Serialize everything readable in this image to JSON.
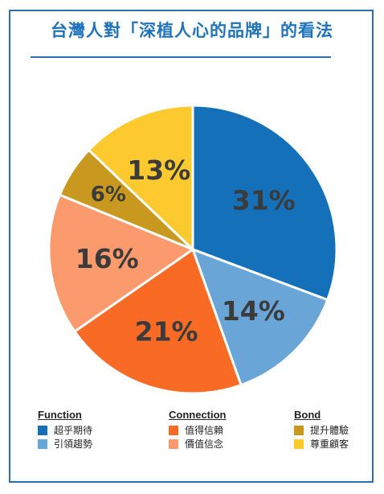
{
  "title": "台灣人對「深植人心的品牌」的看法",
  "chart_data": {
    "type": "pie",
    "slices": [
      {
        "label": "超乎期待",
        "value": 31,
        "display": "31%",
        "color": "#1470b8"
      },
      {
        "label": "引領趨勢",
        "value": 14,
        "display": "14%",
        "color": "#6aa5d8"
      },
      {
        "label": "值得信賴",
        "value": 21,
        "display": "21%",
        "color": "#f96a24"
      },
      {
        "label": "價值信念",
        "value": 16,
        "display": "16%",
        "color": "#fb9a6c"
      },
      {
        "label": "提升體驗",
        "value": 6,
        "display": "6%",
        "color": "#c9981e"
      },
      {
        "label": "尊重顧客",
        "value": 13,
        "display": "13%",
        "color": "#fcc92e"
      }
    ],
    "legend": [
      {
        "heading": "Function",
        "items": [
          "超乎期待",
          "引領趨勢"
        ],
        "colors": [
          "#1470b8",
          "#6aa5d8"
        ]
      },
      {
        "heading": "Connection",
        "items": [
          "值得信賴",
          "價值信念"
        ],
        "colors": [
          "#f96a24",
          "#fb9a6c"
        ]
      },
      {
        "heading": "Bond",
        "items": [
          "提升體驗",
          "尊重顧客"
        ],
        "colors": [
          "#c9981e",
          "#fcc92e"
        ]
      }
    ],
    "legend_position": "bottom"
  }
}
